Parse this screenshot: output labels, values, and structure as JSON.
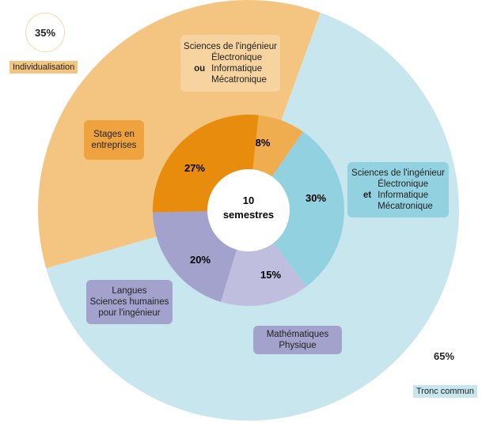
{
  "chart_data": {
    "type": "pie",
    "center_label": [
      "10",
      "semestres"
    ],
    "outer_ring": [
      {
        "label": "Individualisation",
        "value": 35,
        "value_label": "35%",
        "color": "#f4c580"
      },
      {
        "label": "Tronc commun",
        "value": 65,
        "value_label": "65%",
        "color": "#c7e6ee"
      }
    ],
    "inner_ring": [
      {
        "value": 8,
        "value_label": "8%",
        "color": "#f0ad50",
        "group": "Individualisation"
      },
      {
        "value": 30,
        "value_label": "30%",
        "color": "#92d1df",
        "group": "Tronc commun"
      },
      {
        "value": 15,
        "value_label": "15%",
        "color": "#c0bedf",
        "group": "Tronc commun"
      },
      {
        "value": 20,
        "value_label": "20%",
        "color": "#a3a2cc",
        "group": "Tronc commun"
      },
      {
        "value": 27,
        "value_label": "27%",
        "color": "#e88c0e",
        "group": "Individualisation"
      }
    ],
    "annotations": {
      "sci_ou": {
        "title": "Sciences de l'ingénieur",
        "prefix": "ou",
        "items": [
          "Électronique",
          "Informatique",
          "Mécatronique"
        ]
      },
      "sci_et": {
        "title": "Sciences de l'ingénieur",
        "prefix": "et",
        "items": [
          "Électronique",
          "Informatique",
          "Mécatronique"
        ]
      },
      "stages": [
        "Stages en",
        "entreprises"
      ],
      "langues": [
        "Langues",
        "Sciences humaines",
        "pour l'ingénieur"
      ],
      "maths": [
        "Mathématiques",
        "Physique"
      ]
    }
  }
}
